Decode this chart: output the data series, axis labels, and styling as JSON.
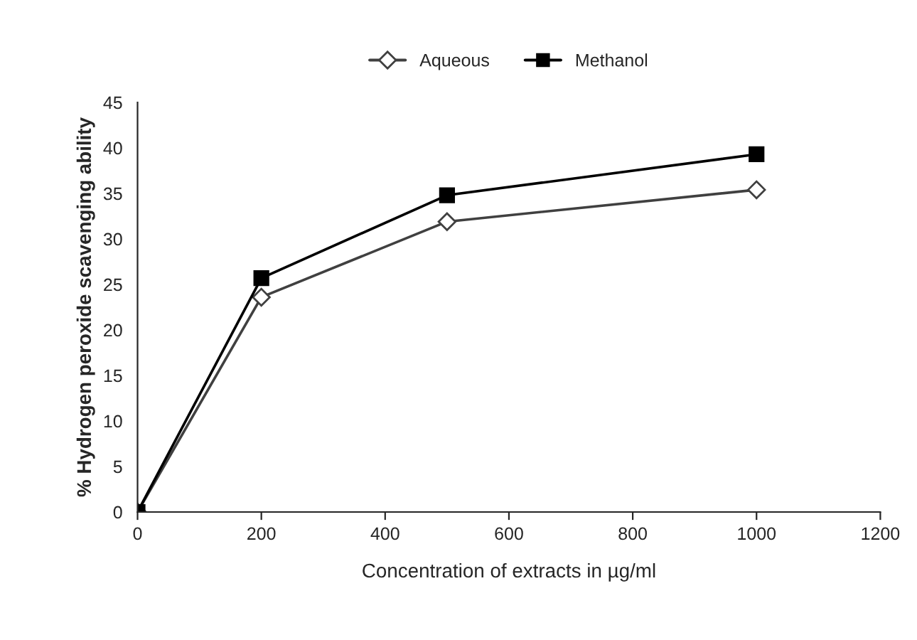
{
  "chart_data": {
    "type": "line",
    "xlabel": "Concentration of extracts in µg/ml",
    "ylabel": "% Hydrogen peroxide scavenging ability",
    "x": [
      0,
      200,
      500,
      1000
    ],
    "series": [
      {
        "name": "Aqueous",
        "color": "#404040",
        "marker": "diamond",
        "values": [
          0,
          23.6,
          31.9,
          35.4
        ]
      },
      {
        "name": "Methanol",
        "color": "#000000",
        "marker": "square",
        "values": [
          0,
          25.7,
          34.8,
          39.3
        ]
      }
    ],
    "xlim": [
      0,
      1200
    ],
    "xticks": [
      0,
      200,
      400,
      600,
      800,
      1000,
      1200
    ],
    "ylim": [
      0,
      45
    ],
    "yticks": [
      0,
      5,
      10,
      15,
      20,
      25,
      30,
      35,
      40,
      45
    ],
    "grid": false,
    "legend": "top",
    "line_style": "solid"
  }
}
